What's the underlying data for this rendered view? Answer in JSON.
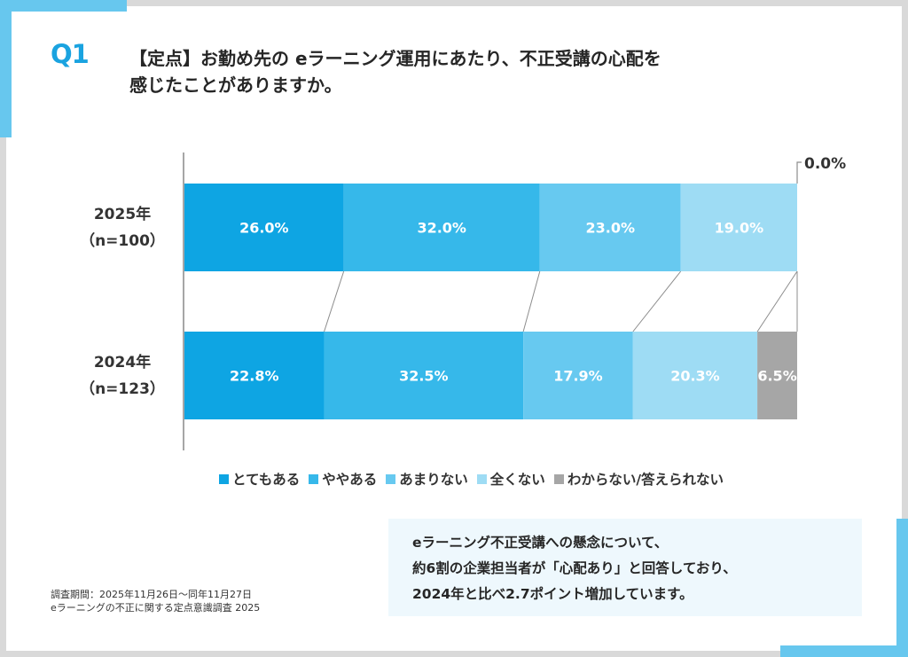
{
  "question": {
    "number": "Q1",
    "lines": [
      "【定点】お勤め先の eラーニング運用にあたり、不正受講の心配を",
      "感じたことがありますか。"
    ]
  },
  "colors": {
    "accent": "#67c7ee",
    "question_number": "#1aa3e0",
    "frame": "#d9d9d9",
    "summary_bg": "#eef8fd"
  },
  "chart_data": {
    "type": "bar",
    "orientation": "horizontal",
    "stacked": "100%",
    "title": "【定点】お勤め先の eラーニング運用にあたり、不正受講の心配を感じたことがありますか。",
    "xlabel": "",
    "ylabel": "",
    "xlim": [
      0,
      100
    ],
    "grid": false,
    "legend_position": "bottom",
    "categories": [
      {
        "label": "2025年",
        "sublabel": "（n=100）"
      },
      {
        "label": "2024年",
        "sublabel": "（n=123）"
      }
    ],
    "series": [
      {
        "name": "とてもある",
        "color": "#0ea5e3",
        "values": [
          26.0,
          22.8
        ],
        "labels": [
          "26.0%",
          "22.8%"
        ]
      },
      {
        "name": "ややある",
        "color": "#36b8ea",
        "values": [
          32.0,
          32.5
        ],
        "labels": [
          "32.0%",
          "32.5%"
        ]
      },
      {
        "name": "あまりない",
        "color": "#67c9f0",
        "values": [
          23.0,
          17.9
        ],
        "labels": [
          "23.0%",
          "17.9%"
        ]
      },
      {
        "name": "全くない",
        "color": "#9edcf4",
        "values": [
          19.0,
          20.3
        ],
        "labels": [
          "19.0%",
          "20.3%"
        ]
      },
      {
        "name": "わからない/答えられない",
        "color": "#a6a6a6",
        "values": [
          0.0,
          6.5
        ],
        "labels": [
          "0.0%",
          "6.5%"
        ]
      }
    ],
    "annotations": [
      {
        "text": "0.0%",
        "target": "2025年 わからない/答えられない",
        "type": "callout"
      }
    ],
    "connector_lines": true
  },
  "footnote": {
    "lines": [
      "調査期間：2025年11月26日～同年11月27日",
      "eラーニングの不正に関する定点意識調査 2025"
    ]
  },
  "summary": {
    "lines": [
      "eラーニング不正受講への懸念について、",
      "約6割の企業担当者が「心配あり」と回答しており、",
      "2024年と比べ2.7ポイント増加しています。"
    ]
  }
}
